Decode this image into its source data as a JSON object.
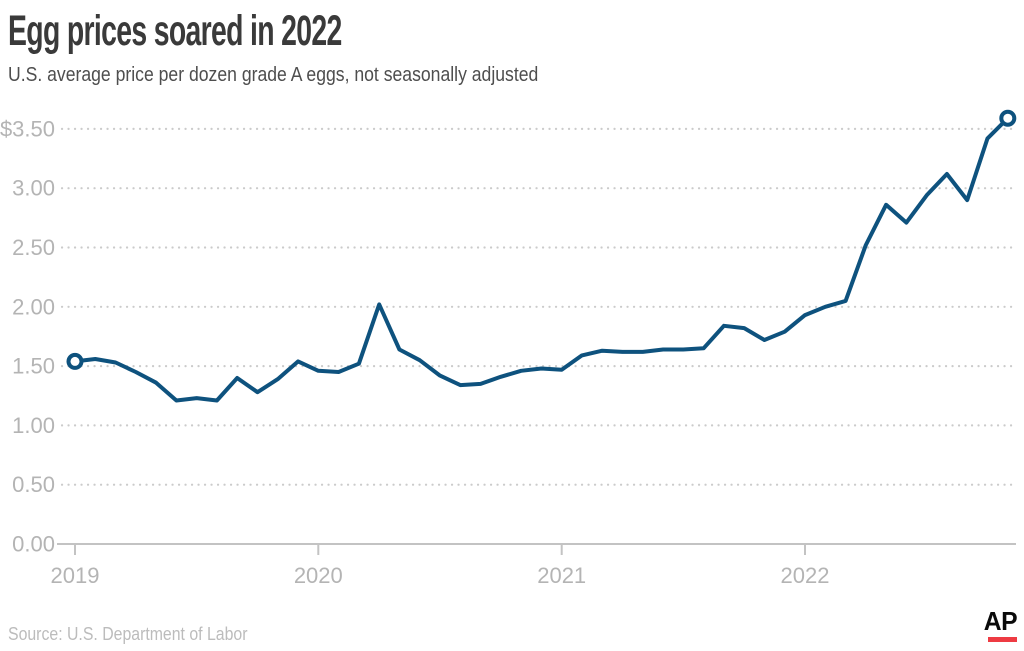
{
  "header": {
    "title": "Egg prices soared in 2022",
    "subtitle": "U.S. average price per dozen grade A eggs, not seasonally adjusted"
  },
  "footer": {
    "source": "Source: U.S. Department of Labor",
    "logo_text": "AP"
  },
  "colors": {
    "line": "#0e527e",
    "grid_dot": "#cbcbcb",
    "axis": "#c3c3c3",
    "tick_label": "#b4b4b4",
    "title": "#3a3a3a",
    "subtitle": "#4e4e4e",
    "source": "#bcbcbc",
    "ap_red": "#ee3b43",
    "ap_black": "#0a0a0a",
    "background": "#ffffff"
  },
  "chart_data": {
    "type": "line",
    "title": "Egg prices soared in 2022",
    "subtitle": "U.S. average price per dozen grade A eggs, not seasonally adjusted",
    "unit": "U.S. dollars per dozen",
    "series": [
      {
        "name": "U.S. average price per dozen grade A eggs, not seasonally adjusted",
        "frequency": "monthly",
        "start": "Jan 2019",
        "end": "Nov 2022",
        "values": [
          1.54,
          1.56,
          1.53,
          1.45,
          1.36,
          1.21,
          1.23,
          1.21,
          1.4,
          1.28,
          1.39,
          1.54,
          1.46,
          1.45,
          1.52,
          2.02,
          1.64,
          1.55,
          1.42,
          1.34,
          1.35,
          1.41,
          1.46,
          1.48,
          1.47,
          1.59,
          1.63,
          1.62,
          1.62,
          1.64,
          1.64,
          1.65,
          1.84,
          1.82,
          1.72,
          1.79,
          1.93,
          2.0,
          2.05,
          2.52,
          2.86,
          2.71,
          2.94,
          3.12,
          2.9,
          3.42,
          3.59
        ]
      }
    ],
    "x_tick_labels": [
      "2019",
      "2020",
      "2021",
      "2022"
    ],
    "x_tick_month_index": [
      0,
      12,
      24,
      36
    ],
    "y_tick_labels": [
      "$3.50",
      "3.00",
      "2.50",
      "2.00",
      "1.50",
      "1.00",
      "0.50",
      "0.00"
    ],
    "ylim": [
      0,
      3.5
    ],
    "grid": "horizontal dotted gridlines at every $0.50, solid baseline at 0.00",
    "legend": "none",
    "markers": "open circles on first (Jan 2019, $1.54) and last (Nov 2022, $3.59) points",
    "source": "Source: U.S. Department of Labor"
  }
}
